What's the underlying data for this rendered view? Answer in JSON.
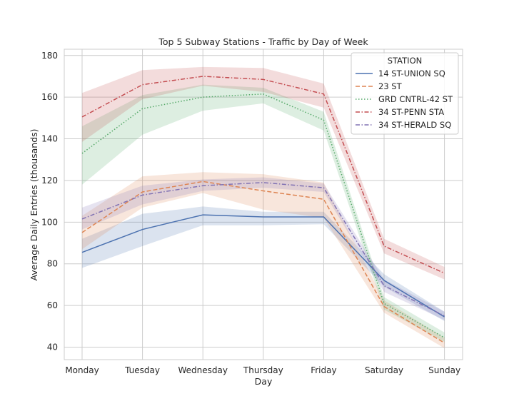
{
  "chart_data": {
    "type": "line",
    "title": "Top 5 Subway Stations - Traffic by Day of Week",
    "xlabel": "Day",
    "ylabel": "Average Daily Entries (thousands)",
    "categories": [
      "Monday",
      "Tuesday",
      "Wednesday",
      "Thursday",
      "Friday",
      "Saturday",
      "Sunday"
    ],
    "ylim": [
      34,
      183
    ],
    "yticks": [
      40,
      60,
      80,
      100,
      120,
      140,
      160,
      180
    ],
    "grid": true,
    "legend_title": "STATION",
    "legend_position": "top-right",
    "series": [
      {
        "name": "14 ST-UNION SQ",
        "color": "#4c72b0",
        "dash": "solid",
        "values": [
          85.5,
          96.5,
          103.5,
          102.5,
          102.5,
          72,
          54.5
        ],
        "lower": [
          78,
          88.5,
          98.5,
          98.5,
          99,
          69,
          52.5
        ],
        "upper": [
          92,
          104,
          107.5,
          105,
          105,
          75,
          57
        ]
      },
      {
        "name": "23 ST",
        "color": "#dd8452",
        "dash": "dashed",
        "values": [
          95,
          114.5,
          119.5,
          115,
          111,
          59.5,
          42
        ],
        "lower": [
          87,
          107,
          114,
          106,
          102,
          56.5,
          39.5
        ],
        "upper": [
          103,
          122,
          124,
          123,
          119,
          62.5,
          44.5
        ]
      },
      {
        "name": "GRD CNTRL-42 ST",
        "color": "#55a868",
        "dash": "dotted",
        "values": [
          133,
          154.5,
          160,
          161.5,
          149,
          61,
          44.5
        ],
        "lower": [
          118,
          142,
          153.5,
          157,
          144,
          58,
          42.5
        ],
        "upper": [
          146,
          161,
          166,
          164.5,
          153,
          64,
          47
        ]
      },
      {
        "name": "34 ST-PENN STA",
        "color": "#c44e52",
        "dash": "dashdot",
        "values": [
          150.5,
          166,
          170,
          168.5,
          161.5,
          88.5,
          75.5
        ],
        "lower": [
          138.5,
          159,
          165.5,
          162.5,
          155,
          85,
          72.5
        ],
        "upper": [
          162,
          173,
          174.5,
          174,
          166.5,
          92,
          78.5
        ]
      },
      {
        "name": "34 ST-HERALD SQ",
        "color": "#8172b3",
        "dash": "dashdot",
        "values": [
          101.5,
          113,
          117.5,
          119,
          116.5,
          69.5,
          55
        ],
        "lower": [
          96.5,
          108.5,
          115,
          116.5,
          114.5,
          66.5,
          53
        ],
        "upper": [
          107,
          117.5,
          120.5,
          121.5,
          118.5,
          72.5,
          57
        ]
      }
    ]
  }
}
